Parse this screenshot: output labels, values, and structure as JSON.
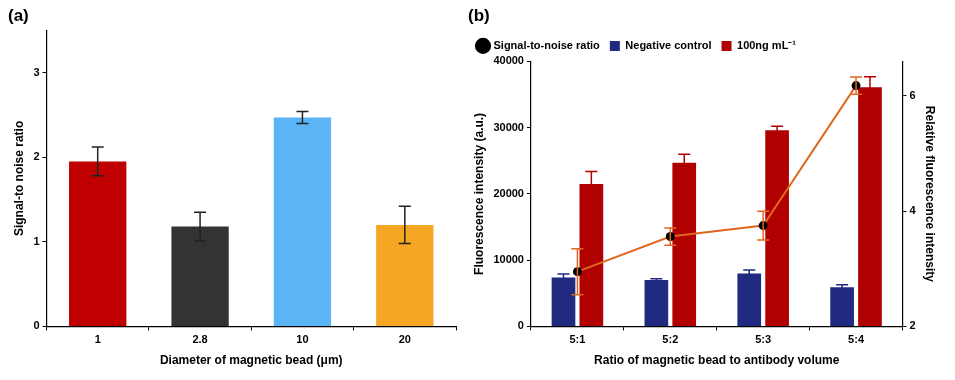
{
  "chart_data": [
    {
      "type": "bar",
      "title": "(a)",
      "categories": [
        "1",
        "2.8",
        "10",
        "20"
      ],
      "values": [
        1.95,
        1.18,
        2.47,
        1.2
      ],
      "errors": [
        0.17,
        0.17,
        0.07,
        0.22
      ],
      "colors": [
        "#c00000",
        "#333333",
        "#5ab4f5",
        "#f5a623"
      ],
      "xlabel": "Diameter of magnetic bead (μm)",
      "ylabel": "Signal-to noise ratio",
      "ylim": [
        0,
        3.5
      ],
      "yticks": [
        0,
        1,
        2,
        3
      ],
      "grid": false
    },
    {
      "type": "bar",
      "title": "(b)",
      "categories": [
        "5:1",
        "5:2",
        "5:3",
        "5:4"
      ],
      "series": [
        {
          "name": "Negative control",
          "color": "#1f2a80",
          "values": [
            7400,
            7000,
            8000,
            5900
          ],
          "errors": [
            500,
            200,
            500,
            400
          ]
        },
        {
          "name": "100ng mL⁻¹",
          "color": "#b00000",
          "values": [
            21500,
            24700,
            29600,
            36100
          ],
          "errors": [
            1900,
            1300,
            600,
            1600
          ]
        },
        {
          "name": "Signal-to-noise ratio",
          "type": "line",
          "axis": "y2",
          "color": "#e0671f",
          "marker": "circle",
          "values": [
            2.95,
            3.56,
            3.75,
            6.18
          ],
          "errors": [
            0.4,
            0.15,
            0.25,
            0.15
          ]
        }
      ],
      "xlabel": "Ratio of magnetic bead to antibody volume",
      "ylabel": "Fluorescence intensity (a.u.)",
      "y2label": "Relative fluorescence intensity",
      "ylim": [
        0,
        40000
      ],
      "yticks": [
        0,
        10000,
        20000,
        30000,
        40000
      ],
      "y2lim": [
        2,
        6.6
      ],
      "y2ticks": [
        2,
        4,
        6
      ],
      "legend": "top-left",
      "grid": false
    }
  ]
}
